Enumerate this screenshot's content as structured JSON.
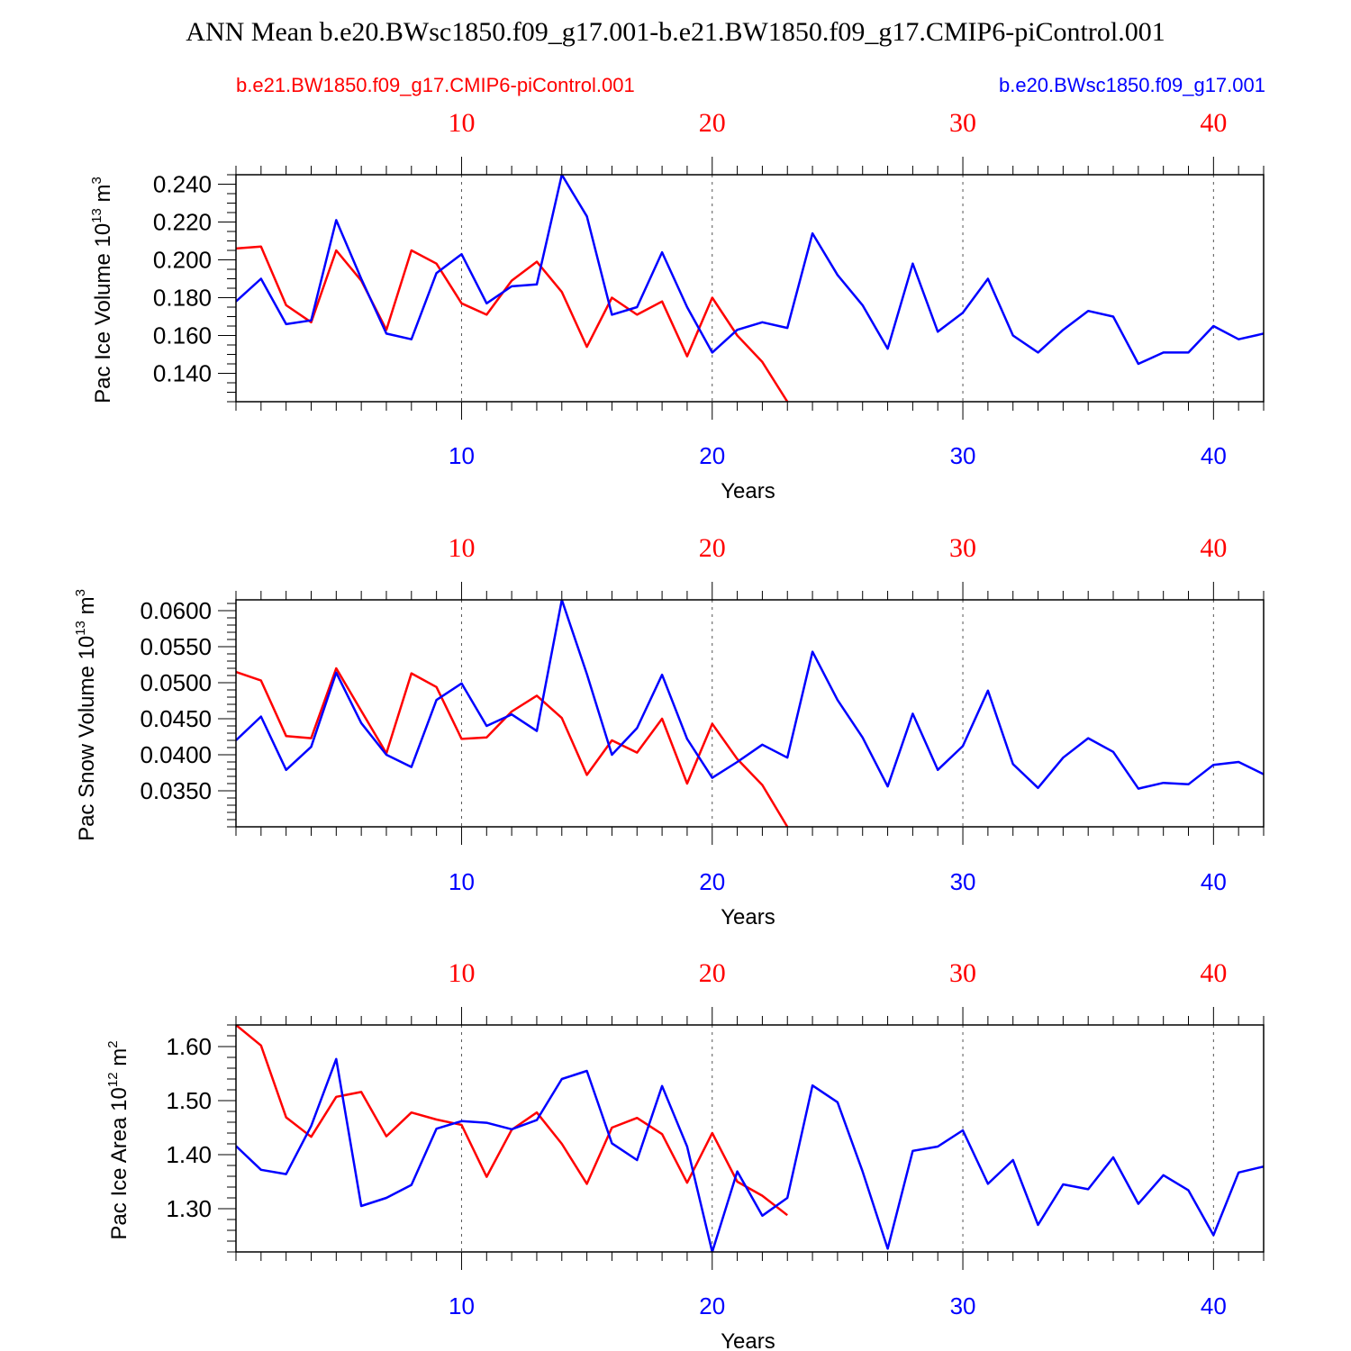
{
  "title": "ANN Mean b.e20.BWsc1850.f09_g17.001-b.e21.BW1850.f09_g17.CMIP6-piControl.001",
  "colors": {
    "series_a": "#ff0000",
    "series_b": "#0000ff",
    "axis": "#000000"
  },
  "legend": {
    "left": "b.e21.BW1850.f09_g17.CMIP6-piControl.001",
    "right": "b.e20.BWsc1850.f09_g17.001"
  },
  "chart_data": [
    {
      "type": "line",
      "ylabel_main": "Pac Ice Volume 10",
      "ylabel_exp": "13",
      "ylabel_unit": " m",
      "ylabel_unit_exp": "3",
      "xlabel": "Years",
      "xlim": [
        1,
        42
      ],
      "ylim": [
        0.125,
        0.245
      ],
      "xticks": [
        10,
        20,
        30,
        40
      ],
      "xtick_labels": [
        "10",
        "20",
        "30",
        "40"
      ],
      "yticks": [
        0.14,
        0.16,
        0.18,
        0.2,
        0.22,
        0.24
      ],
      "ytick_labels": [
        "0.140",
        "0.160",
        "0.180",
        "0.200",
        "0.220",
        "0.240"
      ],
      "yminor": 0.005,
      "series": [
        {
          "name": "b.e21.BW1850.f09_g17.CMIP6-piControl.001",
          "color": "#ff0000",
          "x": [
            1,
            2,
            3,
            4,
            5,
            6,
            7,
            8,
            9,
            10,
            11,
            12,
            13,
            14,
            15,
            16,
            17,
            18,
            19,
            20,
            21,
            22,
            23
          ],
          "values": [
            0.206,
            0.207,
            0.176,
            0.167,
            0.205,
            0.189,
            0.163,
            0.205,
            0.198,
            0.177,
            0.171,
            0.189,
            0.199,
            0.183,
            0.154,
            0.18,
            0.171,
            0.178,
            0.149,
            0.18,
            0.16,
            0.146,
            0.125
          ]
        },
        {
          "name": "b.e20.BWsc1850.f09_g17.001",
          "color": "#0000ff",
          "x": [
            1,
            2,
            3,
            4,
            5,
            6,
            7,
            8,
            9,
            10,
            11,
            12,
            13,
            14,
            15,
            16,
            17,
            18,
            19,
            20,
            21,
            22,
            23,
            24,
            25,
            26,
            27,
            28,
            29,
            30,
            31,
            32,
            33,
            34,
            35,
            36,
            37,
            38,
            39,
            40,
            41,
            42
          ],
          "values": [
            0.178,
            0.19,
            0.166,
            0.168,
            0.221,
            0.19,
            0.161,
            0.158,
            0.193,
            0.203,
            0.177,
            0.186,
            0.187,
            0.245,
            0.223,
            0.171,
            0.175,
            0.204,
            0.175,
            0.151,
            0.163,
            0.167,
            0.164,
            0.214,
            0.192,
            0.176,
            0.153,
            0.198,
            0.162,
            0.172,
            0.19,
            0.16,
            0.151,
            0.163,
            0.173,
            0.17,
            0.145,
            0.151,
            0.151,
            0.165,
            0.158,
            0.161
          ]
        }
      ]
    },
    {
      "type": "line",
      "ylabel_main": "Pac Snow Volume 10",
      "ylabel_exp": "13",
      "ylabel_unit": " m",
      "ylabel_unit_exp": "3",
      "xlabel": "Years",
      "xlim": [
        1,
        42
      ],
      "ylim": [
        0.03,
        0.0615
      ],
      "xticks": [
        10,
        20,
        30,
        40
      ],
      "xtick_labels": [
        "10",
        "20",
        "30",
        "40"
      ],
      "yticks": [
        0.035,
        0.04,
        0.045,
        0.05,
        0.055,
        0.06
      ],
      "ytick_labels": [
        "0.0350",
        "0.0400",
        "0.0450",
        "0.0500",
        "0.0550",
        "0.0600"
      ],
      "yminor": 0.001,
      "series": [
        {
          "name": "b.e21.BW1850.f09_g17.CMIP6-piControl.001",
          "color": "#ff0000",
          "x": [
            1,
            2,
            3,
            4,
            5,
            6,
            7,
            8,
            9,
            10,
            11,
            12,
            13,
            14,
            15,
            16,
            17,
            18,
            19,
            20,
            21,
            22,
            23
          ],
          "values": [
            0.0515,
            0.0503,
            0.0426,
            0.0423,
            0.052,
            0.0461,
            0.0402,
            0.0513,
            0.0494,
            0.0422,
            0.0424,
            0.046,
            0.0482,
            0.0451,
            0.0372,
            0.042,
            0.0403,
            0.045,
            0.036,
            0.0443,
            0.0394,
            0.0358,
            0.03
          ]
        },
        {
          "name": "b.e20.BWsc1850.f09_g17.001",
          "color": "#0000ff",
          "x": [
            1,
            2,
            3,
            4,
            5,
            6,
            7,
            8,
            9,
            10,
            11,
            12,
            13,
            14,
            15,
            16,
            17,
            18,
            19,
            20,
            21,
            22,
            23,
            24,
            25,
            26,
            27,
            28,
            29,
            30,
            31,
            32,
            33,
            34,
            35,
            36,
            37,
            38,
            39,
            40,
            41,
            42
          ],
          "values": [
            0.042,
            0.0453,
            0.0379,
            0.0411,
            0.0514,
            0.0444,
            0.04,
            0.0383,
            0.0476,
            0.0499,
            0.044,
            0.0456,
            0.0433,
            0.0615,
            0.0512,
            0.04,
            0.0437,
            0.0511,
            0.0422,
            0.0368,
            0.039,
            0.0414,
            0.0396,
            0.0543,
            0.0476,
            0.0424,
            0.0356,
            0.0457,
            0.0379,
            0.0412,
            0.0489,
            0.0387,
            0.0354,
            0.0396,
            0.0423,
            0.0404,
            0.0353,
            0.0361,
            0.0359,
            0.0386,
            0.039,
            0.0373
          ]
        }
      ]
    },
    {
      "type": "line",
      "ylabel_main": "Pac Ice Area 10",
      "ylabel_exp": "12",
      "ylabel_unit": " m",
      "ylabel_unit_exp": "2",
      "xlabel": "Years",
      "xlim": [
        1,
        42
      ],
      "ylim": [
        1.22,
        1.64
      ],
      "xticks": [
        10,
        20,
        30,
        40
      ],
      "xtick_labels": [
        "10",
        "20",
        "30",
        "40"
      ],
      "yticks": [
        1.3,
        1.4,
        1.5,
        1.6
      ],
      "ytick_labels": [
        "1.30",
        "1.40",
        "1.50",
        "1.60"
      ],
      "yminor": 0.02,
      "series": [
        {
          "name": "b.e21.BW1850.f09_g17.CMIP6-piControl.001",
          "color": "#ff0000",
          "x": [
            1,
            2,
            3,
            4,
            5,
            6,
            7,
            8,
            9,
            10,
            11,
            12,
            13,
            14,
            15,
            16,
            17,
            18,
            19,
            20,
            21,
            22,
            23
          ],
          "values": [
            1.64,
            1.602,
            1.469,
            1.433,
            1.507,
            1.516,
            1.434,
            1.478,
            1.465,
            1.455,
            1.359,
            1.446,
            1.478,
            1.42,
            1.346,
            1.45,
            1.468,
            1.438,
            1.348,
            1.44,
            1.35,
            1.324,
            1.288
          ]
        },
        {
          "name": "b.e20.BWsc1850.f09_g17.001",
          "color": "#0000ff",
          "x": [
            1,
            2,
            3,
            4,
            5,
            6,
            7,
            8,
            9,
            10,
            11,
            12,
            13,
            14,
            15,
            16,
            17,
            18,
            19,
            20,
            21,
            22,
            23,
            24,
            25,
            26,
            27,
            28,
            29,
            30,
            31,
            32,
            33,
            34,
            35,
            36,
            37,
            38,
            39,
            40,
            41,
            42
          ],
          "values": [
            1.416,
            1.372,
            1.364,
            1.453,
            1.577,
            1.305,
            1.32,
            1.344,
            1.448,
            1.462,
            1.459,
            1.447,
            1.464,
            1.54,
            1.555,
            1.421,
            1.39,
            1.527,
            1.415,
            1.22,
            1.369,
            1.287,
            1.32,
            1.528,
            1.497,
            1.369,
            1.226,
            1.407,
            1.415,
            1.445,
            1.346,
            1.39,
            1.27,
            1.345,
            1.336,
            1.395,
            1.309,
            1.362,
            1.334,
            1.251,
            1.367,
            1.378
          ]
        }
      ]
    }
  ]
}
